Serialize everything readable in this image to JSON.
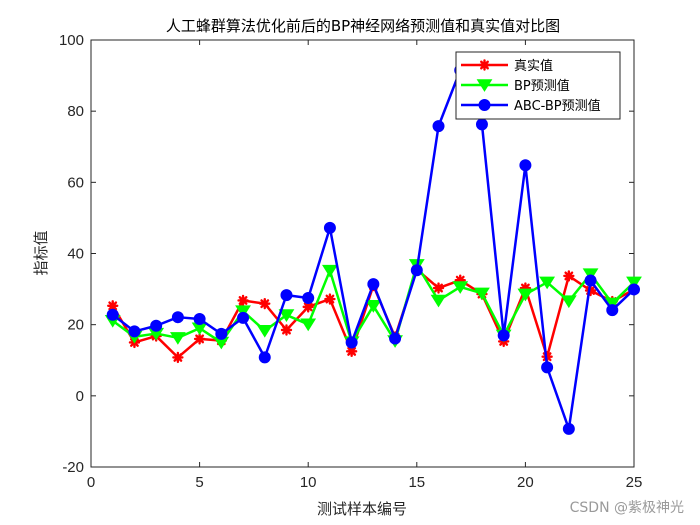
{
  "chart_data": {
    "type": "line",
    "title": "人工蜂群算法优化前后的BP神经网络预测值和真实值对比图",
    "xlabel": "测试样本编号",
    "ylabel": "指标值",
    "xlim": [
      0,
      25
    ],
    "ylim": [
      -20,
      100
    ],
    "xticks": [
      0,
      5,
      10,
      15,
      20,
      25
    ],
    "yticks": [
      -20,
      0,
      20,
      40,
      60,
      80,
      100
    ],
    "legend_position": "top-right",
    "x": [
      1,
      2,
      3,
      4,
      5,
      6,
      7,
      8,
      9,
      10,
      11,
      12,
      13,
      14,
      15,
      16,
      17,
      18,
      19,
      20,
      21,
      22,
      23,
      24,
      25
    ],
    "series": [
      {
        "name": "真实值",
        "color": "#ff0000",
        "marker": "asterisk",
        "values": [
          25.3,
          15.0,
          16.8,
          10.8,
          16.0,
          15.5,
          26.8,
          25.9,
          18.5,
          25.0,
          27.2,
          12.5,
          31.0,
          16.5,
          35.5,
          30.3,
          32.5,
          28.6,
          15.3,
          30.3,
          11.0,
          33.7,
          29.6,
          26.5,
          29.9
        ]
      },
      {
        "name": "BP预测值",
        "color": "#00ff00",
        "marker": "triangle-down",
        "values": [
          21.1,
          16.6,
          17.5,
          16.3,
          19.0,
          15.0,
          23.8,
          18.3,
          22.7,
          20.1,
          35.2,
          15.1,
          25.3,
          15.4,
          36.8,
          26.8,
          30.6,
          28.8,
          17.0,
          28.5,
          31.9,
          26.6,
          34.2,
          26.0,
          31.9
        ]
      },
      {
        "name": "ABC-BP预测值",
        "color": "#0000ff",
        "marker": "circle",
        "values": [
          22.8,
          18.1,
          19.7,
          22.1,
          21.6,
          17.4,
          21.9,
          10.8,
          28.3,
          27.5,
          47.2,
          15.0,
          31.4,
          16.1,
          35.3,
          75.8,
          91.5,
          76.3,
          17.0,
          64.8,
          8.0,
          -9.3,
          32.4,
          24.1,
          29.9
        ]
      }
    ]
  },
  "watermark": "CSDN @紫极神光"
}
